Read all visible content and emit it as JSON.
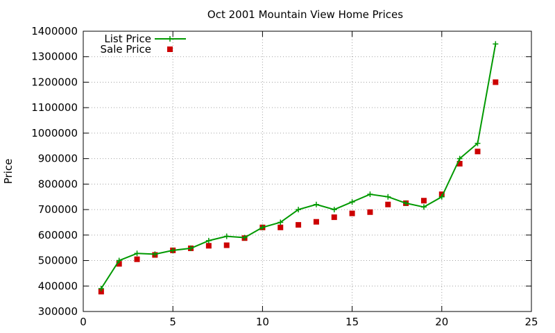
{
  "chart_data": {
    "type": "line",
    "title": "Oct 2001 Mountain View Home Prices",
    "xlabel": "",
    "ylabel": "Price",
    "xlim": [
      0,
      25
    ],
    "ylim": [
      300000,
      1400000
    ],
    "x_ticks": [
      0,
      5,
      10,
      15,
      20,
      25
    ],
    "y_ticks": [
      300000,
      400000,
      500000,
      600000,
      700000,
      800000,
      900000,
      1000000,
      1100000,
      1200000,
      1300000,
      1400000
    ],
    "grid": true,
    "legend_position": "top-left",
    "series": [
      {
        "name": "List Price",
        "style": "line-with-plus-markers",
        "color": "#009900",
        "x": [
          1,
          2,
          3,
          4,
          5,
          6,
          7,
          8,
          9,
          10,
          11,
          12,
          13,
          14,
          15,
          16,
          17,
          18,
          19,
          20,
          21,
          22,
          23
        ],
        "y": [
          390000,
          500000,
          528000,
          525000,
          540000,
          548000,
          578000,
          595000,
          590000,
          630000,
          650000,
          700000,
          720000,
          700000,
          730000,
          760000,
          750000,
          725000,
          710000,
          750000,
          900000,
          960000,
          1350000
        ]
      },
      {
        "name": "Sale Price",
        "style": "square-markers",
        "color": "#cc0000",
        "x": [
          1,
          2,
          3,
          4,
          5,
          6,
          7,
          8,
          9,
          10,
          11,
          12,
          13,
          14,
          15,
          16,
          17,
          18,
          19,
          20,
          21,
          22,
          23
        ],
        "y": [
          378000,
          487000,
          505000,
          522000,
          540000,
          548000,
          558000,
          560000,
          588000,
          630000,
          630000,
          640000,
          652000,
          670000,
          685000,
          690000,
          720000,
          725000,
          735000,
          760000,
          880000,
          928000,
          1200000
        ]
      }
    ]
  }
}
